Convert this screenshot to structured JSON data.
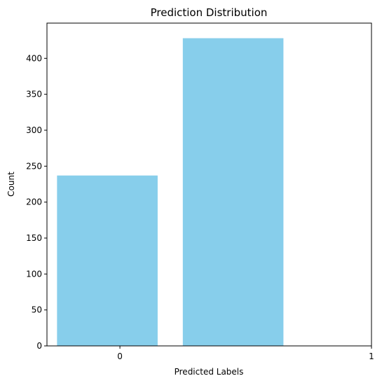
{
  "chart_data": {
    "type": "bar",
    "title": "Prediction Distribution",
    "xlabel": "Predicted Labels",
    "ylabel": "Count",
    "bars": [
      {
        "x_center": -0.05,
        "width": 0.4,
        "value": 237
      },
      {
        "x_center": 0.45,
        "width": 0.4,
        "value": 428
      }
    ],
    "x_ticks": [
      {
        "value": 0,
        "label": "0"
      },
      {
        "value": 1,
        "label": "1"
      }
    ],
    "y_ticks": [
      {
        "value": 0,
        "label": "0"
      },
      {
        "value": 50,
        "label": "50"
      },
      {
        "value": 100,
        "label": "100"
      },
      {
        "value": 150,
        "label": "150"
      },
      {
        "value": 200,
        "label": "200"
      },
      {
        "value": 250,
        "label": "250"
      },
      {
        "value": 300,
        "label": "300"
      },
      {
        "value": 350,
        "label": "350"
      },
      {
        "value": 400,
        "label": "400"
      }
    ],
    "xlim": [
      -0.29,
      1.0
    ],
    "ylim": [
      0,
      449
    ],
    "grid": false,
    "legend": "none",
    "bar_color": "#87CEEB"
  }
}
